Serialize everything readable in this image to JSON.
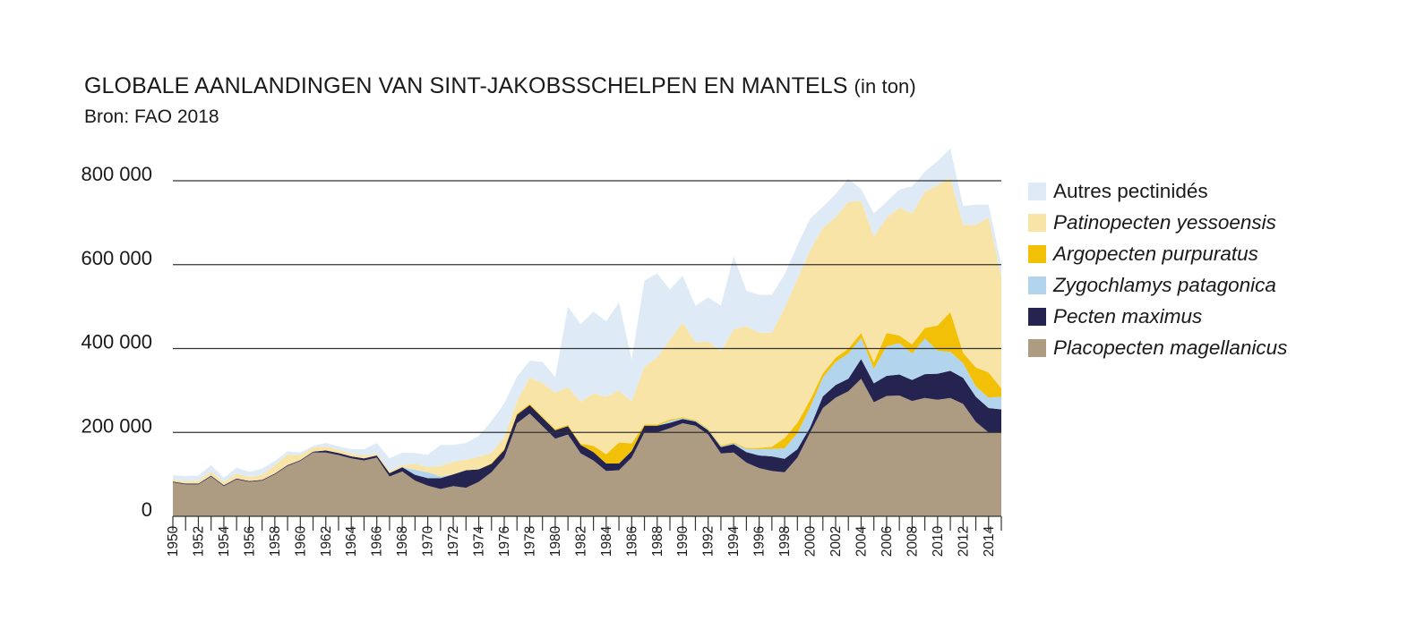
{
  "title": {
    "main": "GLOBALE AANLANDINGEN VAN SINT-JAKOBSSCHELPEN EN MANTELS",
    "unit": "(in ton)",
    "source": "Bron: FAO 2018"
  },
  "chart_data": {
    "type": "area",
    "stacked": true,
    "title": "GLOBALE AANLANDINGEN VAN SINT-JAKOBSSCHELPEN EN MANTELS (in ton)",
    "subtitle": "Bron: FAO 2018",
    "xlabel": "",
    "ylabel": "",
    "ylim": [
      0,
      800000
    ],
    "yticks": [
      0,
      200000,
      400000,
      600000,
      800000
    ],
    "ytick_labels": [
      "0",
      "200 000",
      "400 000",
      "600 000",
      "800 000"
    ],
    "xticks": [
      1950,
      1952,
      1954,
      1956,
      1958,
      1960,
      1962,
      1964,
      1966,
      1968,
      1970,
      1972,
      1974,
      1976,
      1978,
      1980,
      1982,
      1984,
      1986,
      1988,
      1990,
      1992,
      1994,
      1996,
      1998,
      2000,
      2002,
      2004,
      2006,
      2008,
      2010,
      2012,
      2014
    ],
    "grid": "horizontal",
    "legend_position": "right",
    "x": [
      1950,
      1951,
      1952,
      1953,
      1954,
      1955,
      1956,
      1957,
      1958,
      1959,
      1960,
      1961,
      1962,
      1963,
      1964,
      1965,
      1966,
      1967,
      1968,
      1969,
      1970,
      1971,
      1972,
      1973,
      1974,
      1975,
      1976,
      1977,
      1978,
      1979,
      1980,
      1981,
      1982,
      1983,
      1984,
      1985,
      1986,
      1987,
      1988,
      1989,
      1990,
      1991,
      1992,
      1993,
      1994,
      1995,
      1996,
      1997,
      1998,
      1999,
      2000,
      2001,
      2002,
      2003,
      2004,
      2005,
      2006,
      2007,
      2008,
      2009,
      2010,
      2011,
      2012,
      2013,
      2014,
      2015
    ],
    "series": [
      {
        "name": "Placopecten magellanicus",
        "italic": true,
        "color": "#ad9b82",
        "values": [
          81000,
          76000,
          76000,
          95000,
          72000,
          88000,
          82000,
          85000,
          100000,
          120000,
          132000,
          152000,
          152000,
          146000,
          138000,
          133000,
          140000,
          95000,
          107000,
          85000,
          73000,
          65000,
          72000,
          68000,
          82000,
          105000,
          140000,
          222000,
          245000,
          215000,
          185000,
          195000,
          150000,
          133000,
          108000,
          110000,
          140000,
          200000,
          200000,
          210000,
          222000,
          216000,
          195000,
          150000,
          152000,
          128000,
          115000,
          108000,
          105000,
          140000,
          200000,
          258000,
          283000,
          298000,
          328000,
          272000,
          287000,
          288000,
          275000,
          282000,
          278000,
          282000,
          268000,
          225000,
          200000,
          200000
        ]
      },
      {
        "name": "Pecten maximus",
        "color": "#252350",
        "values": [
          2000,
          2000,
          2000,
          2000,
          2000,
          2000,
          2000,
          2000,
          2000,
          2000,
          2000,
          2000,
          5000,
          5000,
          5000,
          5000,
          5000,
          8000,
          10000,
          14000,
          18000,
          26000,
          28000,
          42000,
          30000,
          20000,
          18000,
          20000,
          20000,
          20000,
          20000,
          20000,
          20000,
          20000,
          18000,
          16000,
          16000,
          16000,
          16000,
          13000,
          10000,
          10000,
          10000,
          15000,
          20000,
          25000,
          30000,
          35000,
          32000,
          20000,
          12000,
          28000,
          30000,
          30000,
          47000,
          45000,
          48000,
          50000,
          50000,
          57000,
          62000,
          65000,
          62000,
          60000,
          58000,
          55000
        ]
      },
      {
        "name": "Zygochlamys patagonica",
        "color": "#b2d4ec",
        "values": [
          0,
          0,
          0,
          0,
          0,
          0,
          0,
          0,
          0,
          0,
          0,
          0,
          0,
          0,
          0,
          0,
          0,
          0,
          0,
          12000,
          14000,
          4000,
          0,
          0,
          0,
          0,
          0,
          0,
          0,
          0,
          0,
          0,
          0,
          0,
          0,
          0,
          0,
          0,
          0,
          5000,
          2000,
          2000,
          2000,
          2000,
          2000,
          8000,
          15000,
          18000,
          25000,
          38000,
          48000,
          45000,
          55000,
          60000,
          50000,
          35000,
          70000,
          75000,
          63000,
          85000,
          55000,
          45000,
          35000,
          25000,
          25000,
          30000
        ]
      },
      {
        "name": "Argopecten purpuratus",
        "color": "#f2c107",
        "values": [
          0,
          0,
          0,
          0,
          0,
          0,
          0,
          0,
          0,
          0,
          0,
          0,
          0,
          0,
          0,
          0,
          0,
          0,
          0,
          0,
          0,
          0,
          0,
          0,
          0,
          2000,
          3000,
          3000,
          3000,
          3000,
          3000,
          3000,
          3000,
          15000,
          22000,
          50000,
          18000,
          3000,
          3000,
          3000,
          2000,
          2000,
          2000,
          2000,
          2000,
          2000,
          3000,
          5000,
          25000,
          25000,
          18000,
          10000,
          10000,
          12000,
          12000,
          15000,
          32000,
          18000,
          22000,
          25000,
          60000,
          95000,
          25000,
          45000,
          60000,
          20000
        ]
      },
      {
        "name": "Patinopecten yessoensis",
        "color": "#f9e4a8",
        "values": [
          5000,
          6000,
          7000,
          10000,
          8000,
          12000,
          10000,
          12000,
          20000,
          25000,
          12000,
          10000,
          10000,
          8000,
          7000,
          7000,
          5000,
          5000,
          5000,
          15000,
          12000,
          25000,
          30000,
          25000,
          30000,
          25000,
          28000,
          30000,
          63000,
          80000,
          87000,
          90000,
          100000,
          125000,
          137000,
          124000,
          100000,
          138000,
          160000,
          190000,
          226000,
          185000,
          208000,
          225000,
          270000,
          290000,
          275000,
          272000,
          310000,
          343000,
          357000,
          347000,
          335000,
          350000,
          315000,
          300000,
          275000,
          305000,
          312000,
          325000,
          335000,
          320000,
          305000,
          340000,
          370000,
          265000
        ]
      },
      {
        "name": "Autres pectinidés",
        "color": "#deebf7",
        "values": [
          10000,
          12000,
          12000,
          15000,
          10000,
          14000,
          12000,
          15000,
          10000,
          8000,
          6000,
          4000,
          8000,
          8000,
          10000,
          15000,
          25000,
          30000,
          30000,
          25000,
          30000,
          50000,
          40000,
          40000,
          50000,
          75000,
          80000,
          58000,
          40000,
          50000,
          37000,
          192000,
          185000,
          195000,
          180000,
          210000,
          100000,
          205000,
          200000,
          120000,
          112000,
          87000,
          105000,
          108000,
          175000,
          85000,
          90000,
          90000,
          80000,
          80000,
          75000,
          50000,
          55000,
          55000,
          28000,
          55000,
          38000,
          43000,
          65000,
          48000,
          57000,
          70000,
          45000,
          48000,
          30000,
          30000
        ]
      }
    ]
  }
}
